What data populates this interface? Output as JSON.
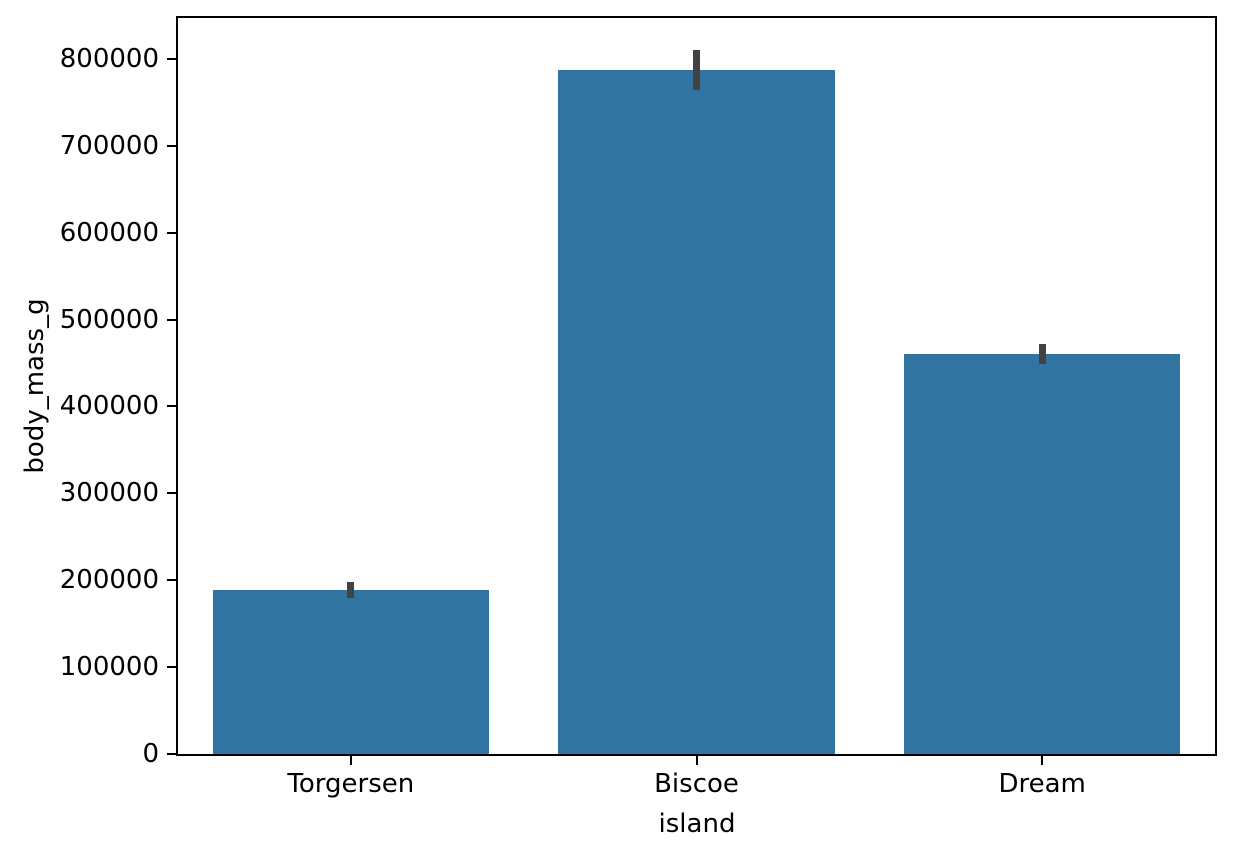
{
  "chart_data": {
    "type": "bar",
    "title": "",
    "xlabel": "island",
    "ylabel": "body_mass_g",
    "categories": [
      "Torgersen",
      "Biscoe",
      "Dream"
    ],
    "values": [
      189000,
      787500,
      460400
    ],
    "error_bars": [
      [
        179000,
        198000
      ],
      [
        764000,
        810000
      ],
      [
        449000,
        472000
      ]
    ],
    "yticks": [
      0,
      100000,
      200000,
      300000,
      400000,
      500000,
      600000,
      700000,
      800000
    ],
    "ylim": [
      0,
      847000
    ],
    "bar_width_fraction": 0.8,
    "bar_color": "#3274a1",
    "error_bar_color": "#424242",
    "spine_color": "#000000",
    "text_color": "#000000",
    "grid": false,
    "legend": false
  }
}
